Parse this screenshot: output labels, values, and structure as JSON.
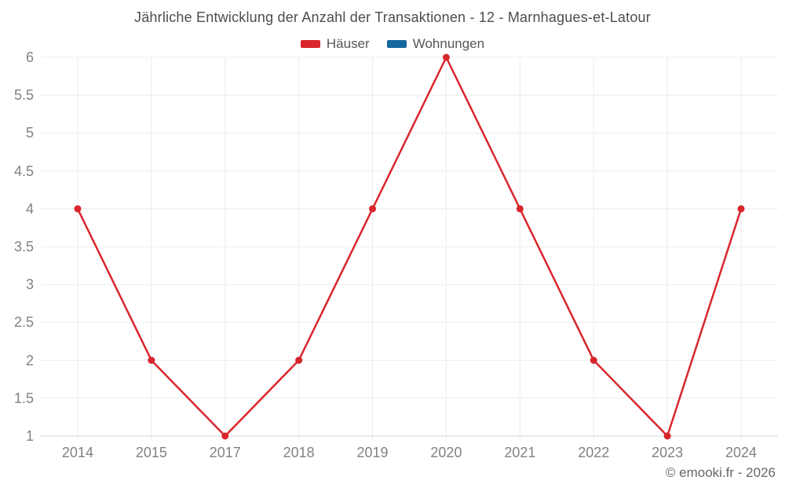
{
  "title": "Jährliche Entwicklung der Anzahl der Transaktionen - 12 - Marnhagues-et-Latour",
  "legend": {
    "items": [
      {
        "label": "Häuser",
        "color": "#d8262c"
      },
      {
        "label": "Wohnungen",
        "color": "#15689d"
      }
    ]
  },
  "footer": {
    "credit": "© emooki.fr - 2026"
  },
  "colors": {
    "series_red": "#d8262c",
    "series_blue": "#15689d",
    "gridline": "#ececec",
    "axis_line": "#d9d9d9",
    "axis_label": "#828282",
    "title_text": "#4d4d4d",
    "legend_text": "#555555",
    "footer_text": "#666666",
    "background": "#ffffff"
  },
  "chart_data": {
    "type": "line",
    "title": "Jährliche Entwicklung der Anzahl der Transaktionen - 12 - Marnhagues-et-Latour",
    "categories": [
      "2014",
      "2015",
      "2017",
      "2018",
      "2019",
      "2020",
      "2021",
      "2022",
      "2023",
      "2024"
    ],
    "series": [
      {
        "name": "Häuser",
        "color": "#d8262c",
        "values": [
          4,
          2,
          1,
          2,
          4,
          6,
          4,
          2,
          1,
          4
        ]
      },
      {
        "name": "Wohnungen",
        "color": "#15689d",
        "values": [
          null,
          null,
          null,
          null,
          null,
          null,
          null,
          null,
          null,
          null
        ]
      }
    ],
    "xlabel": "",
    "ylabel": "",
    "ylim": [
      1,
      6
    ],
    "ytick_step": 0.5,
    "yticks": [
      1,
      1.5,
      2,
      2.5,
      3,
      3.5,
      4,
      4.5,
      5,
      5.5,
      6
    ],
    "grid": true,
    "legend_position": "top",
    "marker_radius": 4.5,
    "line_width": 2.5
  }
}
